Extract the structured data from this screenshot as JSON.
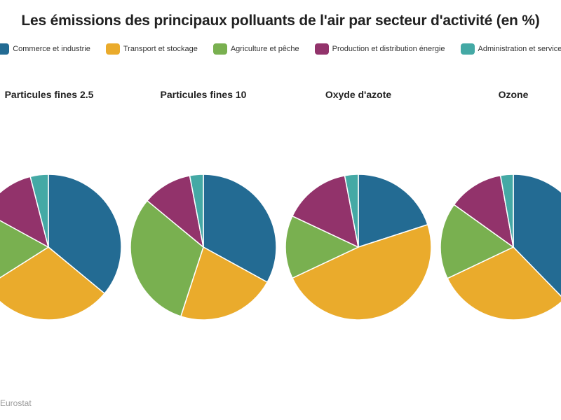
{
  "chart_data": {
    "type": "pie",
    "title": "Les émissions des principaux polluants de l'air par secteur d'activité (en %)",
    "legend_position": "top",
    "categories": [
      "Commerce et industrie",
      "Transport et stockage",
      "Agriculture et pêche",
      "Production et distribution énergie",
      "Administration et services"
    ],
    "colors": [
      "#236b93",
      "#eaab2c",
      "#79b050",
      "#92336b",
      "#44a9a5"
    ],
    "pies": [
      {
        "name": "Particules fines 2.5",
        "values": [
          36,
          30,
          17,
          13,
          4
        ]
      },
      {
        "name": "Particules fines 10",
        "values": [
          33,
          22,
          31,
          11,
          3
        ]
      },
      {
        "name": "Oxyde d'azote",
        "values": [
          20,
          48,
          14,
          15,
          3
        ]
      },
      {
        "name": "Ozone",
        "values": [
          40,
          32,
          18,
          13,
          3
        ]
      }
    ],
    "source": "Eurostat"
  }
}
